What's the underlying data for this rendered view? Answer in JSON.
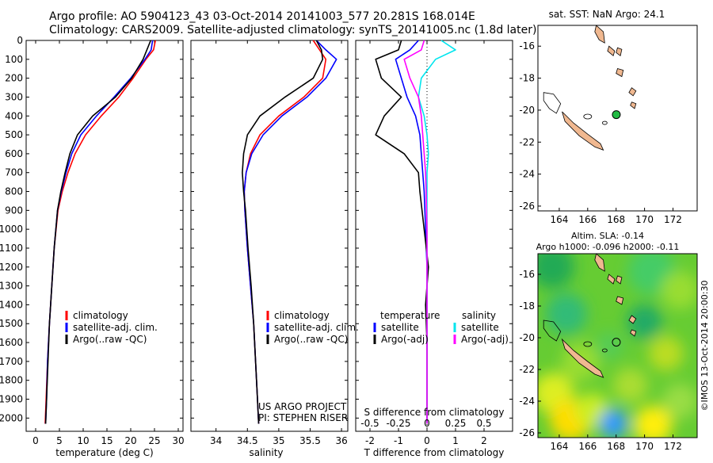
{
  "header": {
    "line1": "Argo profile: AO 5904123_43 03-Oct-2014 20141003_577 20.281S 168.014E",
    "line2": "Climatology: CARS2009. Satellite-adjusted climatology: synTS_20141005.nc (1.8d later)"
  },
  "colors": {
    "climatology": "#ff0000",
    "satellite": "#0000ff",
    "argo": "#000000",
    "sat_salinity": "#00e5ee",
    "argo_salinity": "#ff00ff",
    "land": "#f0b890"
  },
  "chart_data": [
    {
      "type": "line",
      "id": "temperature",
      "xlabel": "temperature (deg C)",
      "xlim": [
        -2,
        31
      ],
      "xticks": [
        0,
        5,
        10,
        15,
        20,
        25,
        30
      ],
      "ylim": [
        2070,
        0
      ],
      "yticks": [
        0,
        100,
        200,
        300,
        400,
        500,
        600,
        700,
        800,
        900,
        1000,
        1100,
        1200,
        1300,
        1400,
        1500,
        1600,
        1700,
        1800,
        1900,
        2000
      ],
      "legend": [
        "climatology",
        "satellite-adj. clim.",
        "Argo(..raw -QC)"
      ],
      "series": [
        {
          "name": "climatology",
          "color": "#ff0000",
          "x": [
            25.2,
            24.8,
            23.2,
            20.5,
            17.5,
            13.8,
            10.5,
            8.3,
            6.8,
            5.6,
            4.7,
            3.9,
            3.4,
            2.9,
            2.5,
            2.2,
            2.0
          ],
          "y": [
            0,
            50,
            100,
            200,
            300,
            400,
            500,
            600,
            700,
            800,
            900,
            1100,
            1300,
            1500,
            1700,
            1900,
            2030
          ]
        },
        {
          "name": "satellite-adj. clim.",
          "color": "#0000ff",
          "x": [
            24.6,
            24.3,
            23.0,
            20.0,
            16.5,
            12.8,
            9.5,
            7.6,
            6.4,
            5.4,
            4.6,
            3.9,
            3.4,
            2.9,
            2.5,
            2.3,
            2.1
          ],
          "y": [
            0,
            50,
            100,
            200,
            300,
            400,
            500,
            600,
            700,
            800,
            900,
            1100,
            1300,
            1500,
            1700,
            1900,
            2030
          ]
        },
        {
          "name": "Argo(..raw -QC)",
          "color": "#000000",
          "x": [
            24.2,
            23.4,
            22.6,
            20.2,
            16.8,
            12.0,
            8.8,
            7.2,
            6.2,
            5.3,
            4.6,
            3.9,
            3.4,
            2.9,
            2.6,
            2.3,
            2.1
          ],
          "y": [
            0,
            50,
            100,
            200,
            300,
            400,
            500,
            600,
            700,
            800,
            900,
            1100,
            1300,
            1500,
            1700,
            1900,
            2030
          ]
        }
      ]
    },
    {
      "type": "line",
      "id": "salinity",
      "xlabel": "salinity",
      "xlim": [
        33.6,
        36.1
      ],
      "xticks": [
        34,
        34.5,
        35,
        35.5,
        36
      ],
      "xtick_labels": [
        "34",
        "34.5",
        "35",
        "35.5",
        "36"
      ],
      "ylim": [
        2070,
        0
      ],
      "legend": [
        "climatology",
        "satellite-adj. clim.",
        "Argo(..raw -QC)"
      ],
      "annotation": [
        "US ARGO PROJECT",
        "PI: STEPHEN RISER"
      ],
      "series": [
        {
          "name": "climatology",
          "color": "#ff0000",
          "x": [
            35.55,
            35.65,
            35.75,
            35.7,
            35.4,
            35.0,
            34.7,
            34.55,
            34.48,
            34.45,
            34.46,
            34.5,
            34.55,
            34.6,
            34.63,
            34.66,
            34.68
          ],
          "y": [
            0,
            50,
            100,
            200,
            300,
            400,
            500,
            600,
            700,
            800,
            900,
            1100,
            1300,
            1500,
            1700,
            1900,
            2030
          ]
        },
        {
          "name": "satellite-adj. clim.",
          "color": "#0000ff",
          "x": [
            35.6,
            35.75,
            35.92,
            35.75,
            35.45,
            35.05,
            34.75,
            34.57,
            34.48,
            34.45,
            34.46,
            34.5,
            34.55,
            34.6,
            34.63,
            34.66,
            34.68
          ],
          "y": [
            0,
            50,
            100,
            200,
            300,
            400,
            500,
            600,
            700,
            800,
            900,
            1100,
            1300,
            1500,
            1700,
            1900,
            2030
          ]
        },
        {
          "name": "Argo(..raw -QC)",
          "color": "#000000",
          "x": [
            35.6,
            35.68,
            35.7,
            35.55,
            35.1,
            34.7,
            34.5,
            34.44,
            34.42,
            34.44,
            34.47,
            34.51,
            34.56,
            34.6,
            34.63,
            34.66,
            34.68
          ],
          "y": [
            0,
            50,
            100,
            200,
            300,
            400,
            500,
            600,
            700,
            800,
            900,
            1100,
            1300,
            1500,
            1700,
            1900,
            2030
          ]
        }
      ]
    },
    {
      "type": "line",
      "id": "difference",
      "xlabel": "T difference from climatology",
      "xlabel_top": "S difference from climatology",
      "xlim": [
        -2.5,
        3.0
      ],
      "xticks": [
        -2,
        -1,
        0,
        1,
        2
      ],
      "xticks_s": [
        -0.5,
        -0.25,
        0,
        0.25,
        0.5
      ],
      "xtick_labels_s": [
        "-0.5",
        "-0.25",
        "0",
        "0.25",
        "0.5"
      ],
      "ylim": [
        2070,
        0
      ],
      "legend_temperature": [
        "temperature",
        "satellite",
        "Argo(-adj)"
      ],
      "legend_salinity": [
        "salinity",
        "satellite",
        "Argo(-adj)"
      ],
      "series": [
        {
          "name": "satellite",
          "color": "#0000ff",
          "x": [
            -0.3,
            -0.6,
            -1.1,
            -0.9,
            -0.7,
            -0.4,
            -0.25,
            -0.2,
            -0.15,
            -0.1,
            -0.05,
            0,
            0,
            0,
            0,
            0
          ],
          "y": [
            0,
            50,
            100,
            200,
            300,
            400,
            500,
            600,
            700,
            800,
            1000,
            1200,
            1400,
            1600,
            1800,
            2030
          ]
        },
        {
          "name": "Argo(-adj)",
          "color": "#000000",
          "x": [
            -0.9,
            -1.0,
            -1.8,
            -1.6,
            -0.9,
            -1.5,
            -1.8,
            -0.8,
            -0.3,
            -0.25,
            -0.1,
            0.05,
            -0.05,
            0,
            0,
            0
          ],
          "y": [
            0,
            50,
            100,
            200,
            300,
            400,
            500,
            600,
            700,
            800,
            1000,
            1200,
            1400,
            1600,
            1800,
            2030
          ]
        },
        {
          "name": "satellite",
          "color": "#00e5ee",
          "x": [
            0.5,
            1.0,
            0.3,
            -0.2,
            -0.3,
            -0.1,
            0,
            0.05,
            0,
            0,
            0,
            0,
            0,
            0,
            0,
            0
          ],
          "y": [
            0,
            50,
            100,
            200,
            300,
            400,
            500,
            600,
            700,
            800,
            1000,
            1200,
            1400,
            1600,
            1800,
            2030
          ]
        },
        {
          "name": "Argo(-adj)",
          "color": "#ff00ff",
          "x": [
            -0.1,
            -0.2,
            -0.8,
            -0.6,
            -0.3,
            -0.2,
            -0.15,
            -0.1,
            -0.05,
            -0.03,
            0,
            0,
            0,
            0,
            0,
            0
          ],
          "y": [
            0,
            50,
            100,
            200,
            300,
            400,
            500,
            600,
            700,
            800,
            1000,
            1200,
            1400,
            1600,
            1800,
            2030
          ]
        }
      ]
    },
    {
      "type": "map",
      "id": "sst_map",
      "title": "sat. SST: NaN Argo: 24.1",
      "xlim": [
        162.5,
        173.7
      ],
      "ylim": [
        -26.3,
        -14.7
      ],
      "xticks": [
        164,
        166,
        168,
        170,
        172
      ],
      "yticks": [
        -16,
        -18,
        -20,
        -22,
        -24,
        -26
      ],
      "float_position": {
        "lon": 168.014,
        "lat": -20.281
      }
    },
    {
      "type": "heatmap",
      "id": "sla_map",
      "title_line1": "Altim. SLA: -0.14",
      "title_line2": "Argo h1000: -0.096 h2000: -0.11",
      "side_label": "©IMOS 13-Oct-2014 20:00:30",
      "xlim": [
        162.5,
        173.7
      ],
      "ylim": [
        -26.3,
        -14.7
      ],
      "xticks": [
        164,
        166,
        168,
        170,
        172
      ],
      "yticks": [
        -16,
        -18,
        -20,
        -22,
        -24,
        -26
      ],
      "float_position": {
        "lon": 168.014,
        "lat": -20.281
      }
    }
  ]
}
